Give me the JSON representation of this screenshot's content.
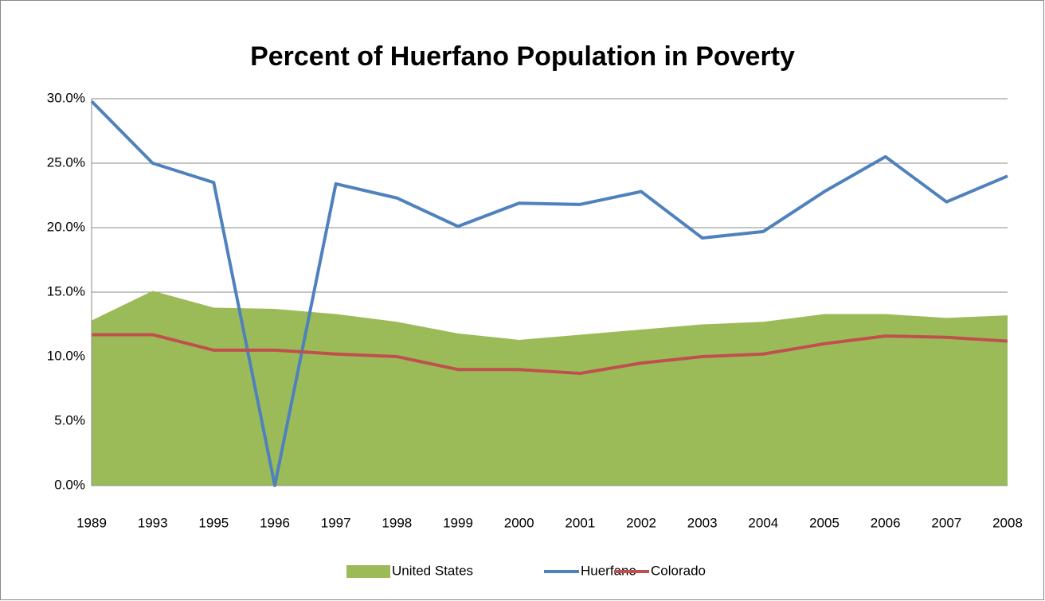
{
  "chart_data": {
    "type": "line",
    "title": "Percent of Huerfano Population in Poverty",
    "categories": [
      "1989",
      "1993",
      "1995",
      "1996",
      "1997",
      "1998",
      "1999",
      "2000",
      "2001",
      "2002",
      "2003",
      "2004",
      "2005",
      "2006",
      "2007",
      "2008"
    ],
    "series": [
      {
        "name": "United States",
        "type": "area",
        "color": "#9bbb59",
        "values": [
          12.8,
          15.1,
          13.8,
          13.7,
          13.3,
          12.7,
          11.8,
          11.3,
          11.7,
          12.1,
          12.5,
          12.7,
          13.3,
          13.3,
          13.0,
          13.2
        ]
      },
      {
        "name": "Huerfano",
        "type": "line",
        "color": "#4f81bd",
        "values": [
          29.8,
          25.0,
          23.5,
          0,
          23.4,
          22.3,
          20.1,
          21.9,
          21.8,
          22.8,
          19.2,
          19.7,
          22.8,
          25.5,
          22.0,
          24.0
        ]
      },
      {
        "name": "Colorado",
        "type": "line",
        "color": "#c0504d",
        "values": [
          11.7,
          11.7,
          10.5,
          10.5,
          10.2,
          10.0,
          9.0,
          9.0,
          8.7,
          9.5,
          10.0,
          10.2,
          11.0,
          11.6,
          11.5,
          11.2
        ]
      }
    ],
    "ylim": [
      0,
      30
    ],
    "yticks": [
      {
        "value": 0,
        "label": "0.0%"
      },
      {
        "value": 5,
        "label": "5.0%"
      },
      {
        "value": 10,
        "label": "10.0%"
      },
      {
        "value": 15,
        "label": "15.0%"
      },
      {
        "value": 20,
        "label": "20.0%"
      },
      {
        "value": 25,
        "label": "25.0%"
      },
      {
        "value": 30,
        "label": "30.0%"
      }
    ],
    "grid": true,
    "legend": "bottom"
  }
}
